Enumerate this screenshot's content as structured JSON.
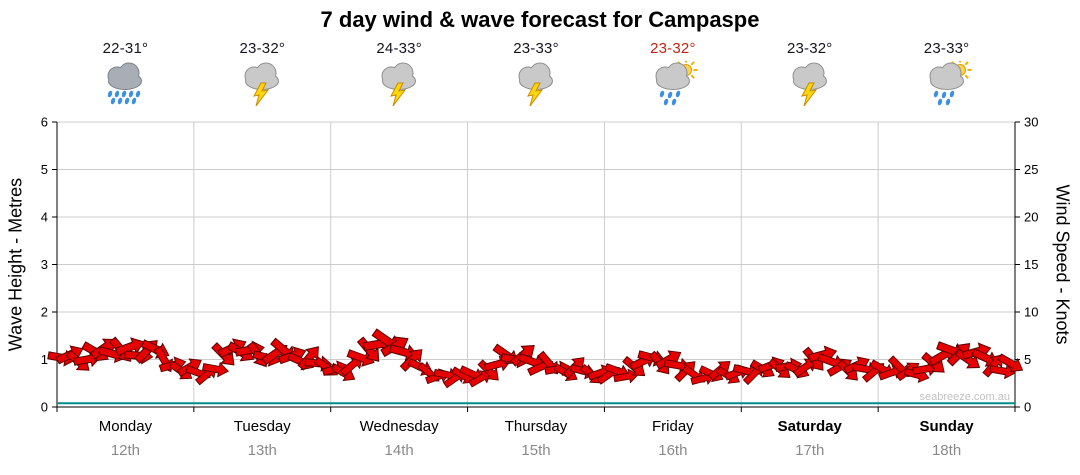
{
  "title": "7 day wind & wave forecast for Campaspe",
  "watermark": "seabreeze.com.au",
  "axes": {
    "left_label": "Wave Height - Metres",
    "right_label": "Wind Speed - Knots",
    "left_ticks": [
      "6",
      "5",
      "4",
      "3",
      "2",
      "1",
      "0"
    ],
    "right_ticks": [
      "30",
      "25",
      "20",
      "15",
      "10",
      "5",
      "0"
    ]
  },
  "days": [
    {
      "name": "Monday",
      "date": "12th",
      "temp": "22-31°",
      "icon": "heavy-rain",
      "bold": false,
      "temp_color": "#15151f"
    },
    {
      "name": "Tuesday",
      "date": "13th",
      "temp": "23-32°",
      "icon": "storm",
      "bold": false,
      "temp_color": "#15151f"
    },
    {
      "name": "Wednesday",
      "date": "14th",
      "temp": "24-33°",
      "icon": "storm",
      "bold": false,
      "temp_color": "#15151f"
    },
    {
      "name": "Thursday",
      "date": "15th",
      "temp": "23-33°",
      "icon": "storm",
      "bold": false,
      "temp_color": "#15151f"
    },
    {
      "name": "Friday",
      "date": "16th",
      "temp": "23-32°",
      "icon": "sun-shower",
      "bold": false,
      "temp_color": "#c02510"
    },
    {
      "name": "Saturday",
      "date": "17th",
      "temp": "23-32°",
      "icon": "storm",
      "bold": true,
      "temp_color": "#15151f"
    },
    {
      "name": "Sunday",
      "date": "18th",
      "temp": "23-33°",
      "icon": "sun-shower",
      "bold": true,
      "temp_color": "#15151f"
    }
  ],
  "chart_data": {
    "type": "wind-arrows",
    "title": "7 day wind & wave forecast for Campaspe",
    "x_categories": [
      "Monday 12th",
      "Tuesday 13th",
      "Wednesday 14th",
      "Thursday 15th",
      "Friday 16th",
      "Saturday 17th",
      "Sunday 18th"
    ],
    "left_axis": {
      "label": "Wave Height - Metres",
      "range": [
        0,
        6
      ],
      "ticks": [
        0,
        1,
        2,
        3,
        4,
        5,
        6
      ]
    },
    "right_axis": {
      "label": "Wind Speed - Knots",
      "range": [
        0,
        30
      ],
      "ticks": [
        0,
        5,
        10,
        15,
        20,
        25,
        30
      ]
    },
    "legend": "off",
    "grid": "on",
    "samples_per_day": 16,
    "wave_height_m": 0.08,
    "wave_line_color": "#008b8b",
    "arrow_color": "#e60000",
    "arrow_outline": "#5d0000",
    "wind_speed_knots": [
      5.2,
      5.5,
      4.8,
      5.0,
      5.8,
      6.2,
      5.6,
      6.0,
      6.3,
      5.4,
      5.9,
      6.1,
      5.0,
      4.4,
      3.8,
      4.2,
      3.6,
      3.4,
      4.0,
      5.5,
      6.2,
      5.8,
      6.0,
      5.5,
      5.2,
      5.6,
      6.0,
      5.4,
      4.8,
      5.2,
      4.6,
      4.2,
      4.0,
      3.6,
      4.4,
      5.2,
      6.0,
      6.6,
      7.0,
      6.4,
      5.8,
      5.0,
      4.2,
      3.6,
      3.2,
      3.4,
      3.0,
      3.3,
      3.5,
      3.0,
      3.8,
      4.5,
      5.5,
      5.0,
      5.5,
      4.8,
      4.2,
      4.6,
      4.0,
      3.6,
      4.2,
      3.8,
      3.4,
      3.6,
      3.4,
      3.8,
      3.2,
      4.2,
      4.8,
      5.2,
      4.6,
      5.0,
      4.4,
      3.8,
      3.4,
      3.0,
      3.5,
      3.9,
      3.3,
      3.6,
      3.8,
      3.5,
      4.0,
      4.4,
      4.0,
      4.3,
      3.9,
      4.2,
      5.0,
      5.5,
      4.8,
      4.2,
      3.8,
      4.4,
      4.0,
      3.7,
      4.0,
      3.6,
      4.2,
      3.8,
      3.4,
      4.0,
      4.6,
      5.4,
      6.0,
      5.6,
      5.0,
      5.8,
      5.2,
      4.4,
      3.8,
      4.6
    ],
    "wind_direction_deg": [
      10,
      -25,
      40,
      -10,
      30,
      -35,
      15,
      50,
      -20,
      5,
      -45,
      25,
      60,
      -15,
      35,
      -30,
      20,
      -40,
      10,
      45,
      -25,
      30,
      -10,
      55,
      15,
      -35,
      40,
      -20,
      25,
      -50,
      5,
      35,
      -15,
      30,
      -40,
      20,
      50,
      -10,
      35,
      -30,
      15,
      -45,
      25,
      40,
      -20,
      10,
      -35,
      30,
      25,
      -30,
      45,
      -15,
      35,
      10,
      -40,
      20,
      -25,
      50,
      -10,
      30,
      -45,
      15,
      40,
      -20,
      -35,
      20,
      -10,
      40,
      -25,
      15,
      50,
      -30,
      10,
      -45,
      35,
      -15,
      25,
      -40,
      30,
      -20,
      15,
      -45,
      30,
      -20,
      40,
      -10,
      25,
      -35,
      50,
      -15,
      20,
      -30,
      45,
      -25,
      10,
      -40,
      30,
      -20,
      45,
      -35,
      15,
      -10,
      40,
      -30,
      20,
      -45,
      35,
      -15,
      25,
      -50,
      10,
      30
    ]
  }
}
